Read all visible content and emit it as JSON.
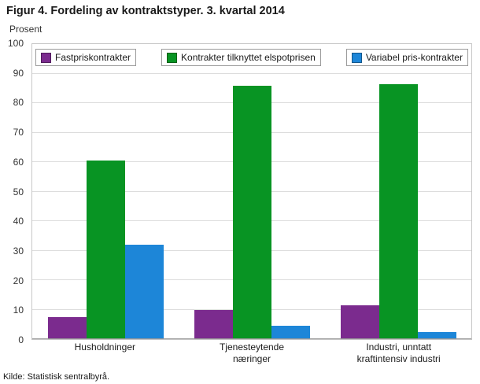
{
  "title": "Figur 4. Fordeling av kontraktstyper. 3. kvartal 2014",
  "y_axis_title": "Prosent",
  "source": "Kilde: Statistisk sentralbyrå.",
  "chart_data": {
    "type": "bar",
    "title": "Figur 4. Fordeling av kontraktstyper. 3. kvartal 2014",
    "ylabel": "Prosent",
    "ylim": [
      0,
      100
    ],
    "ytick_step": 10,
    "grid": true,
    "legend_position": "top-inside",
    "categories": [
      "Husholdninger",
      "Tjenesteytende\nnæringer",
      "Industri, unntatt\nkraftintensiv industri"
    ],
    "series": [
      {
        "name": "Fastpriskontrakter",
        "color": "#7b2b8e",
        "values": [
          7.5,
          10,
          11.5
        ]
      },
      {
        "name": "Kontrakter tilknyttet elspotprisen",
        "color": "#089423",
        "values": [
          60.5,
          86,
          86.5
        ]
      },
      {
        "name": "Variabel pris-kontrakter",
        "color": "#1d86d8",
        "values": [
          32,
          4.5,
          2.5
        ]
      }
    ]
  }
}
